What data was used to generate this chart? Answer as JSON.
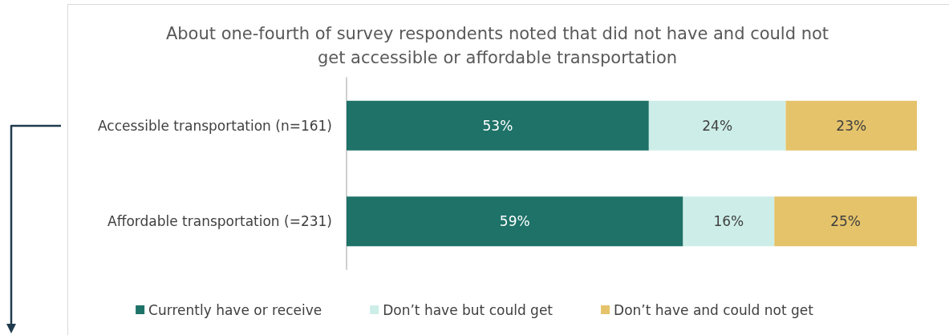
{
  "chart_data": {
    "type": "bar",
    "orientation": "horizontal",
    "stacked": true,
    "tick_labels": "y",
    "title": "About one-fourth of survey respondents noted that did not have and could not\nget accessible or affordable transportation",
    "categories": [
      "Accessible transportation (n=161)",
      "Affordable transportation (=231)"
    ],
    "series": [
      {
        "name": "Currently have or receive",
        "color": "#1e7268",
        "values": [
          53,
          59
        ],
        "value_labels": [
          "53%",
          "59%"
        ]
      },
      {
        "name": "Don’t have but could get",
        "color": "#cdeee8",
        "values": [
          24,
          16
        ],
        "value_labels": [
          "24%",
          "16%"
        ]
      },
      {
        "name": "Don’t have and could not get",
        "color": "#e5c36a",
        "values": [
          23,
          25
        ],
        "value_labels": [
          "23%",
          "25%"
        ]
      }
    ],
    "legend": "bottom"
  }
}
